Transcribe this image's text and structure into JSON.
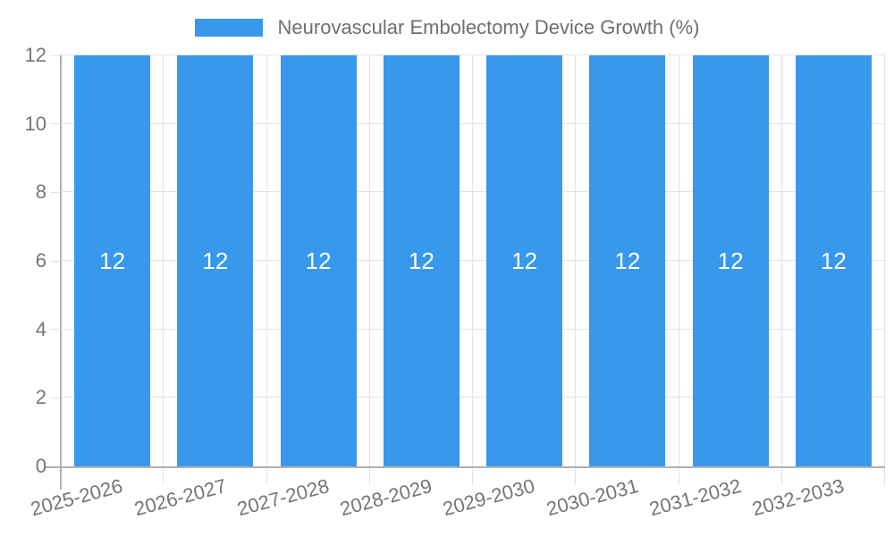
{
  "chart_data": {
    "type": "bar",
    "title": "Neurovascular Embolectomy Device Growth (%)",
    "categories": [
      "2025-2026",
      "2026-2027",
      "2027-2028",
      "2028-2029",
      "2029-2030",
      "2030-2031",
      "2031-2032",
      "2032-2033"
    ],
    "values": [
      12,
      12,
      12,
      12,
      12,
      12,
      12,
      12
    ],
    "bar_value_labels": [
      "12",
      "12",
      "12",
      "12",
      "12",
      "12",
      "12",
      "12"
    ],
    "xlabel": "",
    "ylabel": "",
    "ylim": [
      0,
      12
    ],
    "yticks": [
      0,
      2,
      4,
      6,
      8,
      10,
      12
    ],
    "legend_position": "top",
    "grid": true,
    "colors": {
      "bar": "#3898EC",
      "value_label": "#FFFFFF",
      "axis_text": "#757575",
      "title_text": "#6F6F6F",
      "gridline": "#E3E3E3",
      "axis_line": "#B1B1B1"
    }
  }
}
